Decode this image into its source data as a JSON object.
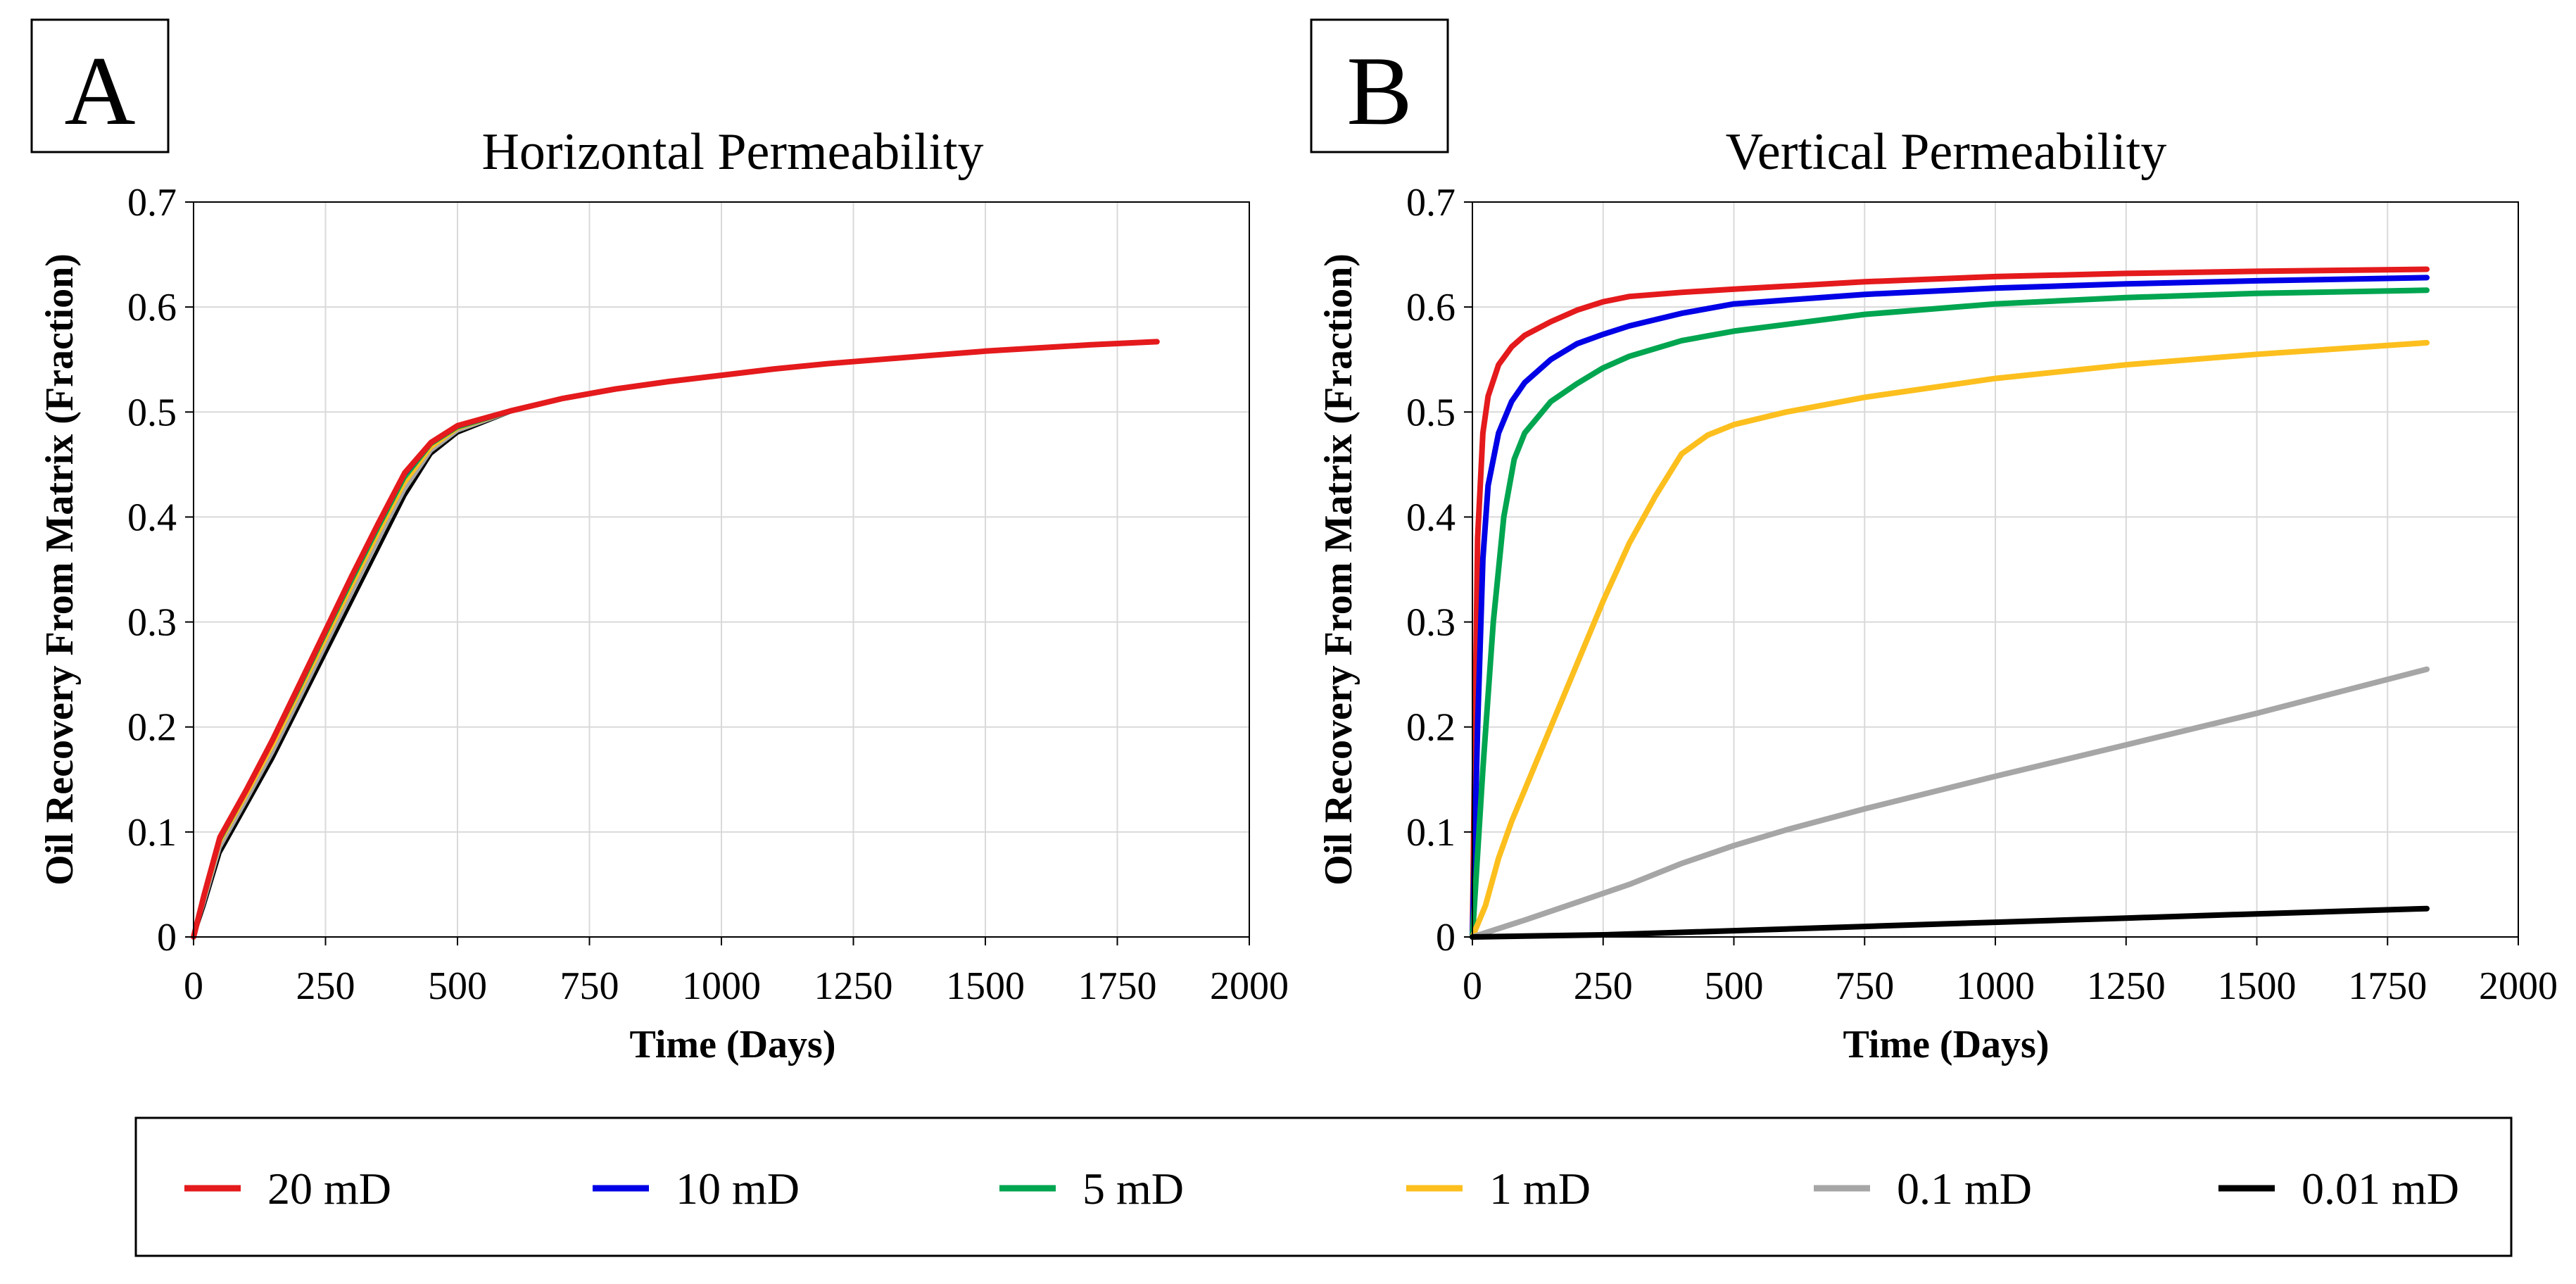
{
  "colors": {
    "20 mD": "#e41a1c",
    "10 mD": "#0000e6",
    "5 mD": "#00a550",
    "1 mD": "#fcbf1e",
    "0.1 mD": "#a6a6a6",
    "0.01 mD": "#000000"
  },
  "legend": [
    "20 mD",
    "10 mD",
    "5 mD",
    "1 mD",
    "0.1 mD",
    "0.01 mD"
  ],
  "chart_data": [
    {
      "panel": "A",
      "type": "line",
      "title": "Horizontal Permeability",
      "xlabel": "Time (Days)",
      "ylabel": "Oil Recovery From Matrix (Fraction)",
      "xlim": [
        0,
        2000
      ],
      "ylim": [
        0,
        0.7
      ],
      "xticks": [
        0,
        250,
        500,
        750,
        1000,
        1250,
        1500,
        1750,
        2000
      ],
      "yticks": [
        0,
        0.1,
        0.2,
        0.3,
        0.4,
        0.5,
        0.6,
        0.7
      ],
      "grid": true,
      "series": [
        {
          "name": "0.01 mD",
          "x": [
            0,
            20,
            50,
            100,
            150,
            200,
            250,
            300,
            350,
            400,
            450,
            500,
            600
          ],
          "y": [
            0,
            0.03,
            0.08,
            0.125,
            0.17,
            0.22,
            0.27,
            0.32,
            0.37,
            0.42,
            0.46,
            0.48,
            0.5
          ]
        },
        {
          "name": "0.1 mD",
          "x": [
            0,
            20,
            50,
            100,
            150,
            200,
            250,
            300,
            350,
            400,
            450,
            500,
            600
          ],
          "y": [
            0,
            0.033,
            0.085,
            0.13,
            0.176,
            0.226,
            0.277,
            0.328,
            0.378,
            0.426,
            0.463,
            0.482,
            0.5
          ]
        },
        {
          "name": "1 mD",
          "x": [
            0,
            20,
            50,
            100,
            150,
            200,
            250,
            300,
            350,
            400,
            450,
            500,
            600
          ],
          "y": [
            0,
            0.036,
            0.09,
            0.135,
            0.182,
            0.232,
            0.283,
            0.334,
            0.384,
            0.432,
            0.466,
            0.484,
            0.5
          ]
        },
        {
          "name": "5 mD",
          "x": [
            0,
            20,
            50,
            100,
            150,
            200,
            250,
            300,
            350,
            400,
            450,
            500,
            600
          ],
          "y": [
            0,
            0.038,
            0.092,
            0.138,
            0.186,
            0.236,
            0.288,
            0.339,
            0.389,
            0.437,
            0.469,
            0.485,
            0.5
          ]
        },
        {
          "name": "10 mD",
          "x": [
            0,
            20,
            50,
            100,
            150,
            200,
            250,
            300,
            350,
            400,
            450,
            500,
            600
          ],
          "y": [
            0,
            0.04,
            0.095,
            0.14,
            0.188,
            0.239,
            0.291,
            0.342,
            0.392,
            0.44,
            0.47,
            0.486,
            0.5
          ]
        },
        {
          "name": "20 mD",
          "x": [
            0,
            20,
            50,
            100,
            150,
            200,
            250,
            300,
            350,
            400,
            450,
            500,
            600,
            700,
            800,
            900,
            1000,
            1100,
            1200,
            1300,
            1400,
            1500,
            1600,
            1700,
            1825
          ],
          "y": [
            0,
            0.04,
            0.095,
            0.14,
            0.188,
            0.24,
            0.292,
            0.344,
            0.394,
            0.442,
            0.471,
            0.487,
            0.501,
            0.513,
            0.522,
            0.529,
            0.535,
            0.541,
            0.546,
            0.55,
            0.554,
            0.558,
            0.561,
            0.564,
            0.567
          ]
        }
      ]
    },
    {
      "panel": "B",
      "type": "line",
      "title": "Vertical Permeability",
      "xlabel": "Time (Days)",
      "ylabel": "Oil Recovery From Matrix (Fraction)",
      "xlim": [
        0,
        2000
      ],
      "ylim": [
        0,
        0.7
      ],
      "xticks": [
        0,
        250,
        500,
        750,
        1000,
        1250,
        1500,
        1750,
        2000
      ],
      "yticks": [
        0,
        0.1,
        0.2,
        0.3,
        0.4,
        0.5,
        0.6,
        0.7
      ],
      "grid": true,
      "series": [
        {
          "name": "20 mD",
          "x": [
            0,
            5,
            10,
            20,
            30,
            50,
            75,
            100,
            150,
            200,
            250,
            300,
            400,
            500,
            750,
            1000,
            1250,
            1500,
            1825
          ],
          "y": [
            0,
            0.2,
            0.38,
            0.48,
            0.515,
            0.545,
            0.562,
            0.573,
            0.586,
            0.597,
            0.605,
            0.61,
            0.614,
            0.617,
            0.624,
            0.629,
            0.632,
            0.634,
            0.636
          ]
        },
        {
          "name": "10 mD",
          "x": [
            0,
            10,
            20,
            30,
            50,
            75,
            100,
            150,
            200,
            250,
            300,
            400,
            500,
            750,
            1000,
            1250,
            1500,
            1825
          ],
          "y": [
            0,
            0.2,
            0.36,
            0.43,
            0.48,
            0.51,
            0.528,
            0.55,
            0.565,
            0.574,
            0.582,
            0.594,
            0.603,
            0.612,
            0.618,
            0.622,
            0.625,
            0.628
          ]
        },
        {
          "name": "5 mD",
          "x": [
            0,
            20,
            40,
            60,
            80,
            100,
            150,
            200,
            250,
            300,
            400,
            500,
            750,
            1000,
            1250,
            1500,
            1825
          ],
          "y": [
            0,
            0.16,
            0.3,
            0.4,
            0.455,
            0.48,
            0.51,
            0.527,
            0.542,
            0.553,
            0.568,
            0.577,
            0.593,
            0.603,
            0.609,
            0.613,
            0.616
          ]
        },
        {
          "name": "1 mD",
          "x": [
            0,
            25,
            50,
            75,
            100,
            150,
            200,
            250,
            300,
            350,
            400,
            450,
            500,
            600,
            750,
            1000,
            1250,
            1500,
            1825
          ],
          "y": [
            0,
            0.03,
            0.075,
            0.11,
            0.14,
            0.2,
            0.26,
            0.32,
            0.375,
            0.42,
            0.46,
            0.478,
            0.488,
            0.5,
            0.514,
            0.532,
            0.545,
            0.555,
            0.566
          ]
        },
        {
          "name": "0.1 mD",
          "x": [
            0,
            50,
            100,
            200,
            300,
            400,
            500,
            600,
            750,
            1000,
            1250,
            1500,
            1825
          ],
          "y": [
            0,
            0.008,
            0.016,
            0.033,
            0.05,
            0.07,
            0.087,
            0.102,
            0.122,
            0.153,
            0.183,
            0.213,
            0.255
          ]
        },
        {
          "name": "0.01 mD",
          "x": [
            0,
            100,
            250,
            500,
            750,
            1000,
            1250,
            1500,
            1825
          ],
          "y": [
            0,
            0.0008,
            0.002,
            0.006,
            0.01,
            0.014,
            0.018,
            0.022,
            0.027
          ]
        }
      ]
    }
  ]
}
